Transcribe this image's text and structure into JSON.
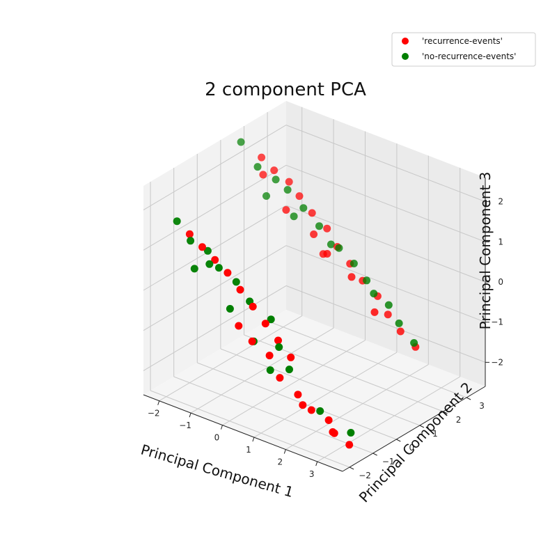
{
  "chart_data": {
    "type": "scatter",
    "projection": "3d",
    "title": "2 component PCA",
    "xlabel": "Principal Component 1",
    "ylabel": "Principal Component 2",
    "zlabel": "Principal Component 3",
    "xlim": [
      -2.5,
      3.8
    ],
    "ylim": [
      -2.3,
      3.8
    ],
    "zlim": [
      -2.6,
      2.6
    ],
    "xticks": [
      "−2",
      "−1",
      "0",
      "1",
      "2",
      "3"
    ],
    "yticks": [
      "−2",
      "−1",
      "0",
      "1",
      "2",
      "3"
    ],
    "zticks": [
      "−2",
      "−1",
      "0",
      "1",
      "2"
    ],
    "grid": true,
    "legend": {
      "position": "top-right"
    },
    "series": [
      {
        "name": "'recurrence-events'",
        "color": "#ff0000",
        "points": [
          [
            -2.0,
            -1.0,
            1.1
          ],
          [
            -1.6,
            -1.0,
            0.9
          ],
          [
            -1.2,
            -1.0,
            0.7
          ],
          [
            -0.8,
            -1.0,
            0.5
          ],
          [
            -0.4,
            -1.0,
            0.2
          ],
          [
            0.0,
            -1.0,
            -0.1
          ],
          [
            0.4,
            -1.0,
            -0.4
          ],
          [
            0.8,
            -1.0,
            -0.7
          ],
          [
            1.2,
            -1.0,
            -1.0
          ],
          [
            -0.3,
            -1.2,
            -0.6
          ],
          [
            0.2,
            -1.3,
            -0.8
          ],
          [
            0.6,
            -1.1,
            -1.1
          ],
          [
            1.0,
            -1.2,
            -1.5
          ],
          [
            1.5,
            -1.1,
            -1.8
          ],
          [
            2.0,
            -1.2,
            -2.0
          ],
          [
            2.4,
            -1.0,
            -2.2
          ],
          [
            2.8,
            -1.3,
            -2.3
          ],
          [
            3.2,
            -1.2,
            -2.5
          ],
          [
            1.8,
            -1.3,
            -1.9
          ],
          [
            2.6,
            -1.1,
            -2.4
          ],
          [
            -1.8,
            1.8,
            2.1
          ],
          [
            -1.4,
            1.8,
            1.9
          ],
          [
            -1.0,
            1.9,
            1.7
          ],
          [
            -0.6,
            1.8,
            1.5
          ],
          [
            -0.2,
            1.8,
            1.2
          ],
          [
            0.2,
            1.9,
            0.9
          ],
          [
            0.6,
            1.8,
            0.6
          ],
          [
            1.0,
            1.8,
            0.3
          ],
          [
            1.4,
            1.8,
            0.0
          ],
          [
            1.8,
            1.9,
            -0.3
          ],
          [
            2.2,
            1.8,
            -0.6
          ],
          [
            2.6,
            1.8,
            -0.9
          ],
          [
            3.0,
            1.9,
            -1.2
          ],
          [
            0.0,
            1.6,
            0.8
          ],
          [
            0.5,
            1.5,
            0.5
          ],
          [
            1.2,
            1.6,
            0.1
          ],
          [
            2.0,
            1.5,
            -0.5
          ],
          [
            -0.8,
            1.5,
            1.2
          ],
          [
            -1.6,
            1.6,
            1.8
          ],
          [
            0.3,
            1.6,
            0.4
          ]
        ]
      },
      {
        "name": "'no-recurrence-events'",
        "color": "#007f00",
        "points": [
          [
            -2.4,
            -1.0,
            1.3
          ],
          [
            -1.9,
            -1.1,
            1.0
          ],
          [
            -1.5,
            -0.9,
            0.8
          ],
          [
            -1.0,
            -1.1,
            0.6
          ],
          [
            -0.6,
            -0.9,
            0.3
          ],
          [
            -0.1,
            -1.0,
            0.0
          ],
          [
            0.5,
            -0.9,
            -0.3
          ],
          [
            -1.7,
            -1.2,
            0.4
          ],
          [
            0.9,
            -1.1,
            -0.8
          ],
          [
            1.3,
            -1.2,
            -1.2
          ],
          [
            2.2,
            -1.1,
            -2.0
          ],
          [
            3.1,
            -1.0,
            -2.3
          ],
          [
            0.1,
            -1.1,
            -0.9
          ],
          [
            -0.5,
            -1.3,
            -0.2
          ],
          [
            0.7,
            -1.2,
            -1.4
          ],
          [
            -1.3,
            -1.1,
            0.6
          ],
          [
            -2.3,
            1.6,
            2.4
          ],
          [
            -1.7,
            1.5,
            2.0
          ],
          [
            -1.2,
            1.6,
            1.8
          ],
          [
            -0.9,
            1.7,
            1.6
          ],
          [
            -0.4,
            1.7,
            1.3
          ],
          [
            0.1,
            1.7,
            1.0
          ],
          [
            0.8,
            1.6,
            0.7
          ],
          [
            1.2,
            1.7,
            0.4
          ],
          [
            1.6,
            1.7,
            0.1
          ],
          [
            2.3,
            1.7,
            -0.3
          ],
          [
            2.7,
            1.6,
            -0.6
          ],
          [
            3.1,
            1.7,
            -1.0
          ],
          [
            0.4,
            1.8,
            0.6
          ],
          [
            -0.7,
            1.7,
            1.0
          ],
          [
            1.9,
            1.6,
            -0.1
          ],
          [
            -1.5,
            1.6,
            1.3
          ]
        ]
      }
    ]
  }
}
